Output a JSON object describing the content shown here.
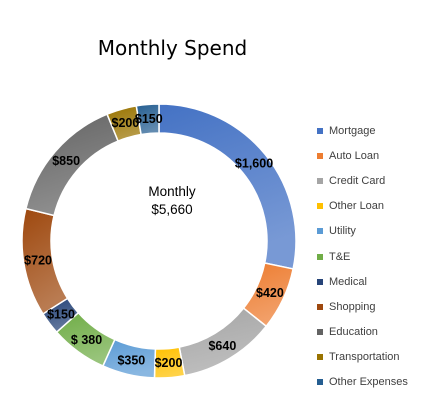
{
  "chart_data": {
    "type": "donut",
    "title": "Monthly Spend",
    "center_label": "Monthly",
    "center_value": "$5,660",
    "legend_position": "right",
    "slices": [
      {
        "name": "Mortgage",
        "value": 1600,
        "label": "$1,600",
        "color": "#4472c4"
      },
      {
        "name": "Auto Loan",
        "value": 420,
        "label": "$420",
        "color": "#ed7d31"
      },
      {
        "name": "Credit Card",
        "value": 640,
        "label": "$640",
        "color": "#a5a5a5"
      },
      {
        "name": "Other Loan",
        "value": 200,
        "label": "$200",
        "color": "#ffc000"
      },
      {
        "name": "Utility",
        "value": 350,
        "label": "$350",
        "color": "#5b9bd5"
      },
      {
        "name": "T&E",
        "value": 380,
        "label": "$ 380",
        "color": "#70ad47"
      },
      {
        "name": "Medical",
        "value": 150,
        "label": "$150",
        "color": "#264478"
      },
      {
        "name": "Shopping",
        "value": 720,
        "label": "$720",
        "color": "#9e480e"
      },
      {
        "name": "Education",
        "value": 850,
        "label": "$850",
        "color": "#636363"
      },
      {
        "name": "Transportation",
        "value": 200,
        "label": "$200",
        "color": "#997300"
      },
      {
        "name": "Other Expenses",
        "value": 150,
        "label": "$150",
        "color": "#255e91"
      }
    ]
  }
}
